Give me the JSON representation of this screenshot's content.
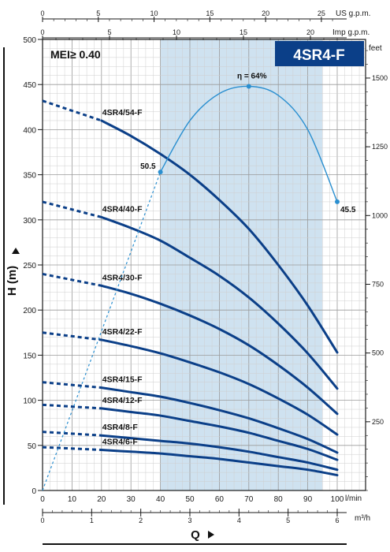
{
  "chart_data": {
    "type": "line",
    "title": "4SR4-F",
    "mei_label": "MEI≥ 0.40",
    "xlabel": "Q",
    "ylabel": "H (m)",
    "x_unit": "l/min",
    "x2_unit": "m³/h",
    "us_unit": "US g.p.m.",
    "imp_unit": "Imp g.p.m.",
    "feet_unit": "feet",
    "xlim": [
      0,
      100
    ],
    "ylim": [
      0,
      500
    ],
    "x_ticks": [
      0,
      10,
      20,
      30,
      40,
      50,
      60,
      70,
      80,
      90,
      100
    ],
    "y_ticks": [
      0,
      50,
      100,
      150,
      200,
      250,
      300,
      350,
      400,
      450,
      500
    ],
    "m3h_ticks": [
      0,
      1,
      2,
      3,
      4,
      5,
      6
    ],
    "us_ticks": [
      0,
      5,
      10,
      15,
      20,
      25
    ],
    "imp_ticks": [
      0,
      5,
      10,
      15,
      20
    ],
    "feet_ticks": [
      250,
      500,
      750,
      1000,
      1250,
      1500
    ],
    "grid": true,
    "recommended_range": [
      40,
      95
    ],
    "series": [
      {
        "name": "4SR4/54-F",
        "x": [
          20,
          30,
          40,
          50,
          60,
          70,
          80,
          90,
          100
        ],
        "y": [
          410,
          393,
          373,
          350,
          322,
          290,
          250,
          205,
          153
        ]
      },
      {
        "name": "4SR4/40-F",
        "x": [
          20,
          30,
          40,
          50,
          60,
          70,
          80,
          90,
          100
        ],
        "y": [
          303,
          291,
          277,
          258,
          238,
          214,
          185,
          152,
          113
        ]
      },
      {
        "name": "4SR4/30-F",
        "x": [
          20,
          30,
          40,
          50,
          60,
          70,
          80,
          90,
          100
        ],
        "y": [
          227,
          218,
          207,
          194,
          179,
          161,
          139,
          114,
          85
        ]
      },
      {
        "name": "4SR4/22-F",
        "x": [
          20,
          30,
          40,
          50,
          60,
          70,
          80,
          90,
          100
        ],
        "y": [
          167,
          160,
          152,
          142,
          131,
          118,
          102,
          84,
          62
        ]
      },
      {
        "name": "4SR4/15-F",
        "x": [
          20,
          30,
          40,
          50,
          60,
          70,
          80,
          90,
          100
        ],
        "y": [
          114,
          109,
          104,
          97,
          89,
          80,
          69,
          57,
          42
        ]
      },
      {
        "name": "4SR4/12-F",
        "x": [
          20,
          30,
          40,
          50,
          60,
          70,
          80,
          90,
          100
        ],
        "y": [
          91,
          87,
          83,
          77,
          71,
          64,
          55,
          46,
          34
        ]
      },
      {
        "name": "4SR4/8-F",
        "x": [
          20,
          30,
          40,
          50,
          60,
          70,
          80,
          90,
          100
        ],
        "y": [
          61,
          58,
          55,
          52,
          48,
          43,
          37,
          31,
          23
        ]
      },
      {
        "name": "4SR4/6-F",
        "x": [
          20,
          30,
          40,
          50,
          60,
          70,
          80,
          90,
          100
        ],
        "y": [
          45,
          43,
          41,
          38,
          35,
          31,
          27,
          23,
          17
        ]
      }
    ],
    "shutoff_heads": [
      432,
      320,
      240,
      175,
      120,
      95,
      65,
      48
    ],
    "efficiency": {
      "peak_label": "η = 64%",
      "x": [
        40,
        50,
        60,
        70,
        80,
        90,
        100
      ],
      "y": [
        353,
        410,
        440,
        448,
        438,
        400,
        320
      ],
      "points": [
        {
          "x": 40,
          "y": 353,
          "label": "50.5"
        },
        {
          "x": 70,
          "y": 448
        },
        {
          "x": 100,
          "y": 320,
          "label": "45.5"
        }
      ]
    }
  }
}
